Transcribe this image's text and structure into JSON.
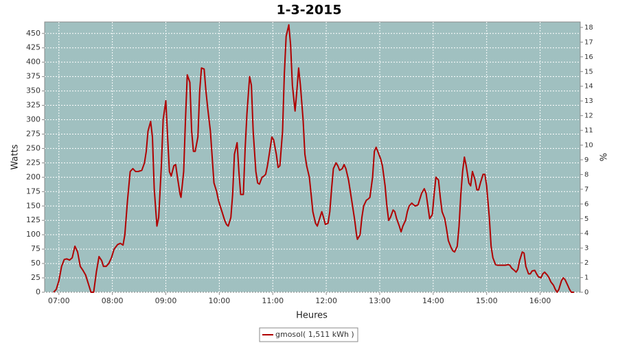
{
  "chart_data": {
    "type": "line",
    "title": "1-3-2015",
    "x_label": "Heures",
    "y_label": "Watts",
    "y2_label": "%",
    "xlim": [
      404,
      1005
    ],
    "xticks": [
      {
        "value": 420,
        "label": "07:00"
      },
      {
        "value": 480,
        "label": "08:00"
      },
      {
        "value": 540,
        "label": "09:00"
      },
      {
        "value": 600,
        "label": "10:00"
      },
      {
        "value": 660,
        "label": "11:00"
      },
      {
        "value": 720,
        "label": "12:00"
      },
      {
        "value": 780,
        "label": "13:00"
      },
      {
        "value": 840,
        "label": "14:00"
      },
      {
        "value": 900,
        "label": "15:00"
      },
      {
        "value": 960,
        "label": "16:00"
      }
    ],
    "ylim": [
      0,
      470
    ],
    "yticks": [
      0,
      25,
      50,
      75,
      100,
      125,
      150,
      175,
      200,
      225,
      250,
      275,
      300,
      325,
      350,
      375,
      400,
      425,
      450
    ],
    "y2lim": [
      0,
      18.37
    ],
    "y2ticks": [
      0,
      1,
      2,
      3,
      4,
      5,
      6,
      7,
      8,
      9,
      10,
      11,
      12,
      13,
      14,
      15,
      16,
      17,
      18
    ],
    "grid": true,
    "legend": "bottom",
    "series": [
      {
        "name": "gmosol( 1,511 kWh )",
        "color": "#b00000",
        "x": [
          414,
          417,
          420,
          423,
          426,
          429,
          432,
          435,
          438,
          441,
          444,
          447,
          450,
          453,
          456,
          459,
          462,
          465,
          468,
          470,
          473,
          476,
          479,
          482,
          486,
          489,
          492,
          494,
          497,
          500,
          503,
          506,
          509,
          513,
          516,
          518,
          520,
          523,
          525,
          527,
          530,
          532,
          535,
          537,
          540,
          542,
          544,
          546,
          549,
          551,
          553,
          556,
          557,
          560,
          562,
          564,
          567,
          569,
          571,
          573,
          576,
          578,
          580,
          583,
          585,
          587,
          590,
          592,
          594,
          597,
          599,
          601,
          604,
          606,
          608,
          610,
          613,
          615,
          617,
          620,
          622,
          624,
          627,
          629,
          631,
          634,
          636,
          638,
          641,
          643,
          645,
          648,
          650,
          652,
          654,
          657,
          659,
          661,
          664,
          666,
          668,
          671,
          673,
          675,
          678,
          680,
          682,
          685,
          687,
          689,
          691,
          694,
          696,
          698,
          701,
          703,
          705,
          708,
          710,
          712,
          715,
          717,
          719,
          722,
          724,
          726,
          728,
          731,
          733,
          735,
          738,
          740,
          742,
          745,
          747,
          749,
          752,
          754,
          755,
          758,
          760,
          762,
          765,
          767,
          769,
          772,
          774,
          776,
          779,
          781,
          783,
          786,
          788,
          790,
          792,
          795,
          797,
          799,
          802,
          804,
          806,
          809,
          811,
          813,
          816,
          818,
          820,
          823,
          825,
          827,
          830,
          832,
          834,
          836,
          839,
          841,
          843,
          846,
          848,
          850,
          853,
          855,
          857,
          860,
          862,
          864,
          867,
          869,
          871,
          873,
          875,
          877,
          880,
          882,
          884,
          887,
          889,
          891,
          893,
          896,
          898,
          900,
          903,
          905,
          907,
          910,
          912,
          914,
          917,
          919,
          921,
          924,
          926,
          928,
          931,
          933,
          935,
          937,
          940,
          942,
          944,
          947,
          949,
          951,
          954,
          956,
          958,
          961,
          963,
          965,
          968,
          970,
          972,
          975,
          977,
          979,
          981,
          984,
          986,
          988,
          991,
          993,
          995,
          998
        ],
        "values": [
          0,
          5,
          20,
          45,
          57,
          58,
          56,
          60,
          80,
          70,
          45,
          38,
          30,
          15,
          0,
          0,
          35,
          62,
          55,
          45,
          45,
          50,
          60,
          75,
          83,
          85,
          82,
          100,
          160,
          210,
          215,
          210,
          210,
          212,
          225,
          245,
          280,
          297,
          270,
          180,
          115,
          130,
          220,
          300,
          333,
          270,
          210,
          202,
          220,
          222,
          200,
          170,
          165,
          210,
          300,
          378,
          365,
          280,
          245,
          245,
          270,
          350,
          390,
          388,
          350,
          320,
          280,
          235,
          190,
          175,
          160,
          150,
          135,
          125,
          118,
          115,
          130,
          170,
          240,
          260,
          210,
          170,
          170,
          250,
          310,
          375,
          360,
          280,
          210,
          190,
          188,
          200,
          202,
          205,
          220,
          250,
          270,
          265,
          240,
          217,
          220,
          280,
          380,
          445,
          465,
          430,
          360,
          315,
          350,
          390,
          360,
          300,
          240,
          220,
          200,
          170,
          140,
          120,
          115,
          125,
          140,
          130,
          118,
          120,
          140,
          180,
          215,
          225,
          220,
          212,
          215,
          222,
          215,
          195,
          175,
          155,
          125,
          100,
          92,
          100,
          130,
          150,
          160,
          162,
          165,
          200,
          245,
          252,
          240,
          232,
          220,
          185,
          150,
          125,
          130,
          143,
          140,
          128,
          115,
          105,
          115,
          125,
          140,
          150,
          155,
          152,
          150,
          152,
          162,
          172,
          180,
          172,
          150,
          128,
          135,
          170,
          200,
          195,
          165,
          140,
          128,
          110,
          90,
          78,
          72,
          70,
          80,
          115,
          170,
          210,
          235,
          220,
          190,
          185,
          210,
          195,
          178,
          178,
          190,
          205,
          205,
          185,
          130,
          80,
          60,
          48,
          47,
          47,
          47,
          47,
          47,
          48,
          47,
          42,
          38,
          35,
          40,
          55,
          70,
          68,
          45,
          32,
          32,
          37,
          38,
          32,
          27,
          25,
          32,
          35,
          30,
          25,
          18,
          12,
          5,
          0,
          5,
          20,
          25,
          22,
          12,
          5,
          0,
          0
        ]
      }
    ]
  }
}
